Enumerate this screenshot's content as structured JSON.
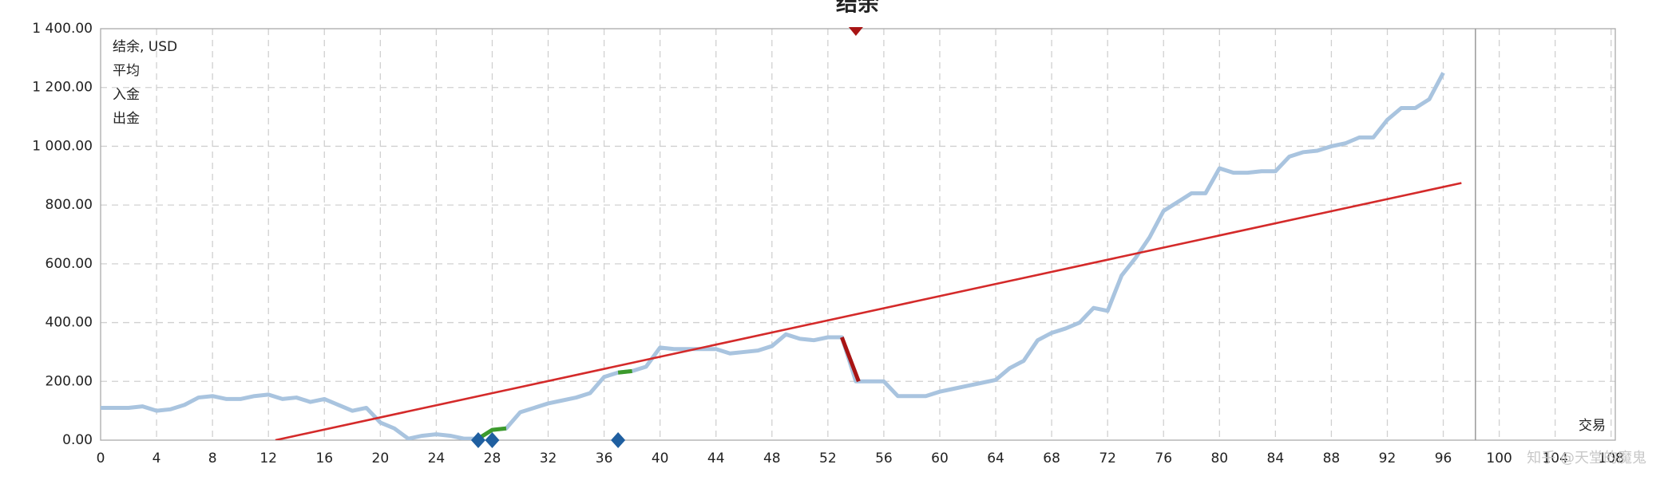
{
  "chart_data": {
    "type": "line",
    "title": "结余",
    "x_label": "交易",
    "watermark": "知乎 @天堂的魔鬼",
    "xlim": [
      0,
      108.3
    ],
    "xticks": [
      0,
      4,
      8,
      12,
      16,
      20,
      24,
      28,
      32,
      36,
      40,
      44,
      48,
      52,
      56,
      60,
      64,
      68,
      72,
      76,
      80,
      84,
      88,
      92,
      96,
      100,
      104,
      108
    ],
    "ylim": [
      0,
      1400
    ],
    "yticks": [
      {
        "value": 0,
        "label": "0.00"
      },
      {
        "value": 200,
        "label": "200.00"
      },
      {
        "value": 400,
        "label": "400.00"
      },
      {
        "value": 600,
        "label": "600.00"
      },
      {
        "value": 800,
        "label": "800.00"
      },
      {
        "value": 1000,
        "label": "1 000.00"
      },
      {
        "value": 1200,
        "label": "1 200.00"
      },
      {
        "value": 1400,
        "label": "1 400.00"
      }
    ],
    "grid": true,
    "xline": 98.3,
    "legend": "upper left",
    "series": [
      {
        "name": "结余, USD",
        "color": "#a9c4df",
        "legend_color": "#1f6fb8",
        "values": [
          110,
          110,
          110,
          115,
          100,
          105,
          120,
          145,
          150,
          140,
          140,
          150,
          155,
          140,
          145,
          130,
          140,
          120,
          100,
          110,
          60,
          40,
          5,
          15,
          20,
          15,
          5,
          5,
          35,
          40,
          95,
          110,
          125,
          135,
          145,
          160,
          215,
          230,
          235,
          250,
          315,
          310,
          310,
          310,
          310,
          295,
          300,
          305,
          320,
          360,
          345,
          340,
          350,
          350,
          200,
          200,
          200,
          150,
          150,
          150,
          165,
          175,
          185,
          195,
          205,
          245,
          270,
          340,
          365,
          380,
          400,
          450,
          440,
          560,
          620,
          690,
          780,
          810,
          840,
          840,
          925,
          910,
          910,
          915,
          915,
          965,
          980,
          985,
          1000,
          1010,
          1030,
          1030,
          1090,
          1130,
          1130,
          1160,
          1250
        ]
      },
      {
        "name": "平均",
        "color": "#d42a2a",
        "x": [
          12.5,
          97.3
        ],
        "values": [
          0,
          875
        ]
      },
      {
        "name": "入金",
        "color": "#3c9a2c",
        "x": [
          27,
          28,
          29,
          37,
          37,
          38
        ],
        "values": [
          5,
          35,
          40,
          null,
          230,
          235
        ]
      },
      {
        "name": "出金",
        "color": "#a81414",
        "x": [
          53,
          54.2
        ],
        "values": [
          350,
          200
        ]
      }
    ],
    "markers": [
      {
        "shape": "diamond",
        "color": "#1f5fa0",
        "x": [
          27,
          28,
          37
        ],
        "values": [
          0,
          0,
          0
        ]
      },
      {
        "shape": "triangle",
        "color": "#a81414",
        "x": [
          54
        ],
        "values": [
          1400
        ]
      }
    ]
  }
}
